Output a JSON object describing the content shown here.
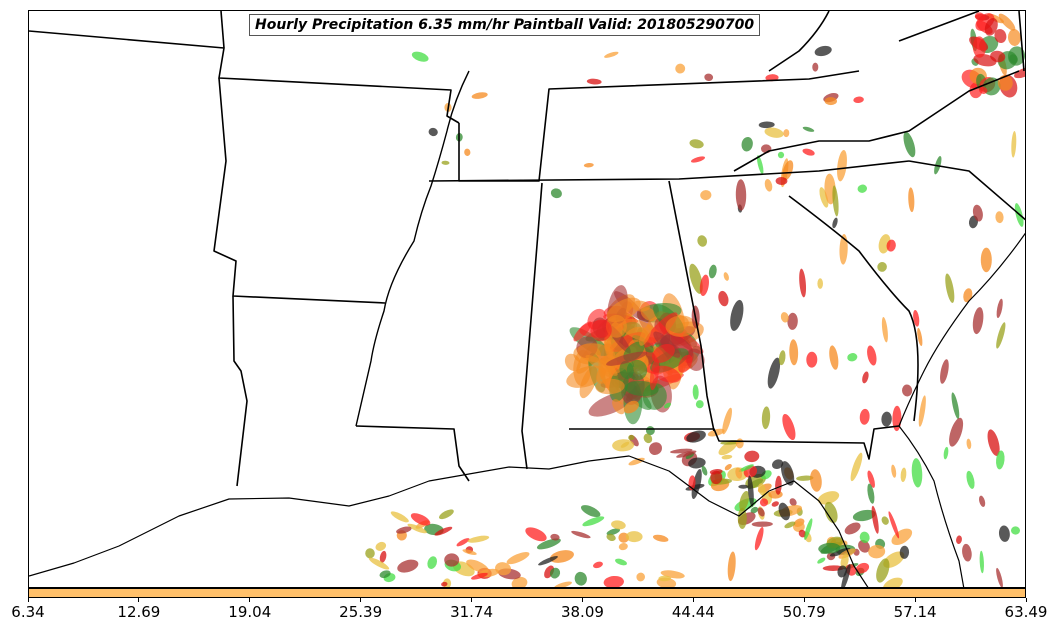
{
  "title": "Hourly Precipitation 6.35 mm/hr Paintball Valid: 201805290700",
  "colorbar": {
    "color": "#FFC06A",
    "ticks": [
      "6.34",
      "12.69",
      "19.04",
      "25.39",
      "31.74",
      "38.09",
      "44.44",
      "50.79",
      "57.14",
      "63.49"
    ]
  },
  "palette": {
    "land_border": "#000000",
    "paint_colors": [
      "#f58a1f",
      "#ff2020",
      "#d81010",
      "#2f8a2f",
      "#44dd44",
      "#9aa21c",
      "#a83232",
      "#222222",
      "#f9a23a",
      "#e8c040"
    ]
  }
}
